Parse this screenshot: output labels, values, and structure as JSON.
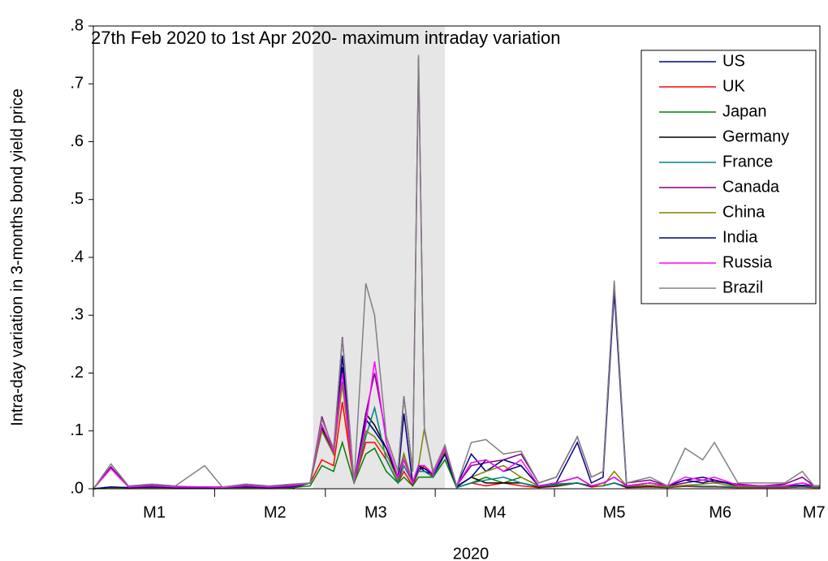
{
  "chart_data": {
    "type": "line",
    "title": "27th Feb 2020 to 1st Apr 2020- maximum intraday variation",
    "x_label": "2020",
    "y_label": "Intra-day variation in 3-months bond yield price",
    "shaded_x": [
      37.5,
      60
    ],
    "shade_color": "#e6e6e6",
    "x": [
      0,
      3,
      6,
      10,
      14,
      19,
      22,
      26,
      30,
      34,
      37,
      39,
      41,
      42.5,
      44.5,
      46.5,
      48,
      50,
      52,
      53,
      54.5,
      55.5,
      56.5,
      58,
      60,
      62,
      64.5,
      67,
      70,
      73,
      76,
      79,
      82.6,
      85,
      87,
      88.9,
      91,
      95,
      98,
      101,
      104,
      106,
      110,
      114,
      118,
      121,
      123,
      124
    ],
    "xlim": [
      0,
      124
    ],
    "xticks": [
      {
        "value": 10.4,
        "label": "M1"
      },
      {
        "value": 31,
        "label": "M2"
      },
      {
        "value": 48.2,
        "label": "M3"
      },
      {
        "value": 68.5,
        "label": "M4"
      },
      {
        "value": 88.9,
        "label": "M5"
      },
      {
        "value": 107,
        "label": "M6"
      },
      {
        "value": 123,
        "label": "M7"
      }
    ],
    "ylim": [
      0,
      0.8
    ],
    "yticks": [
      {
        "value": 0,
        "label": ".0"
      },
      {
        "value": 0.1,
        "label": ".1"
      },
      {
        "value": 0.2,
        "label": ".2"
      },
      {
        "value": 0.3,
        "label": ".3"
      },
      {
        "value": 0.4,
        "label": ".4"
      },
      {
        "value": 0.5,
        "label": ".5"
      },
      {
        "value": 0.6,
        "label": ".6"
      },
      {
        "value": 0.7,
        "label": ".7"
      },
      {
        "value": 0.8,
        "label": ".8"
      }
    ],
    "legend": "upper right",
    "series": [
      {
        "name": "US",
        "color": "#00008b",
        "values": [
          0,
          0.035,
          0.003,
          0.004,
          0.003,
          0.003,
          0.002,
          0.004,
          0.003,
          0.004,
          0.01,
          0.1,
          0.06,
          0.23,
          0.01,
          0.12,
          0.1,
          0.07,
          0.02,
          0.06,
          0.01,
          0.04,
          0.03,
          0.025,
          0.07,
          0.005,
          0.06,
          0.03,
          0.05,
          0.04,
          0.005,
          0.01,
          0.08,
          0.01,
          0.02,
          0.34,
          0.005,
          0.01,
          0.005,
          0.015,
          0.02,
          0.015,
          0.005,
          0.005,
          0.005,
          0.01,
          0.005,
          0.005
        ]
      },
      {
        "name": "UK",
        "color": "#ff0000",
        "values": [
          0,
          0.002,
          0.001,
          0.002,
          0.001,
          0.001,
          0.001,
          0.002,
          0.001,
          0.002,
          0.01,
          0.05,
          0.04,
          0.15,
          0.01,
          0.08,
          0.08,
          0.05,
          0.01,
          0.03,
          0.005,
          0.03,
          0.04,
          0.02,
          0.06,
          0.002,
          0.01,
          0.005,
          0.01,
          0.005,
          0.002,
          0.004,
          0.01,
          0.003,
          0.005,
          0.01,
          0.002,
          0.003,
          0.002,
          0.004,
          0.003,
          0.003,
          0.002,
          0.002,
          0.002,
          0.003,
          0.002,
          0.002
        ]
      },
      {
        "name": "Japan",
        "color": "#008000",
        "values": [
          0,
          0.003,
          0.002,
          0.002,
          0.002,
          0.002,
          0.002,
          0.002,
          0.002,
          0.002,
          0.005,
          0.04,
          0.03,
          0.08,
          0.01,
          0.06,
          0.07,
          0.03,
          0.01,
          0.02,
          0.005,
          0.02,
          0.02,
          0.02,
          0.05,
          0.002,
          0.01,
          0.02,
          0.01,
          0.02,
          0.005,
          0.008,
          0.01,
          0.005,
          0.005,
          0.01,
          0.004,
          0.005,
          0.003,
          0.005,
          0.004,
          0.004,
          0.003,
          0.003,
          0.003,
          0.004,
          0.003,
          0.003
        ]
      },
      {
        "name": "Germany",
        "color": "#000000",
        "values": [
          0,
          0.002,
          0.001,
          0.001,
          0.001,
          0.001,
          0.001,
          0.001,
          0.001,
          0.001,
          0.01,
          0.105,
          0.06,
          0.21,
          0.01,
          0.13,
          0.11,
          0.07,
          0.015,
          0.05,
          0.01,
          0.04,
          0.035,
          0.025,
          0.06,
          0.003,
          0.02,
          0.01,
          0.01,
          0.01,
          0.003,
          0.005,
          0.01,
          0.004,
          0.005,
          0.01,
          0.003,
          0.004,
          0.003,
          0.005,
          0.004,
          0.004,
          0.003,
          0.003,
          0.003,
          0.004,
          0.003,
          0.003
        ]
      },
      {
        "name": "France",
        "color": "#008080",
        "values": [
          0,
          0.003,
          0.002,
          0.002,
          0.002,
          0.002,
          0.002,
          0.002,
          0.002,
          0.002,
          0.01,
          0.1,
          0.06,
          0.185,
          0.01,
          0.09,
          0.14,
          0.05,
          0.01,
          0.04,
          0.01,
          0.03,
          0.03,
          0.02,
          0.06,
          0.002,
          0.01,
          0.015,
          0.02,
          0.01,
          0.004,
          0.006,
          0.01,
          0.005,
          0.005,
          0.01,
          0.004,
          0.005,
          0.003,
          0.005,
          0.004,
          0.004,
          0.003,
          0.003,
          0.003,
          0.004,
          0.003,
          0.003
        ]
      },
      {
        "name": "Canada",
        "color": "#800080",
        "values": [
          0,
          0.038,
          0.004,
          0.006,
          0.004,
          0.003,
          0.003,
          0.006,
          0.004,
          0.006,
          0.01,
          0.125,
          0.065,
          0.262,
          0.01,
          0.13,
          0.2,
          0.09,
          0.03,
          0.16,
          0.03,
          0.745,
          0.1,
          0.03,
          0.075,
          0.005,
          0.04,
          0.045,
          0.05,
          0.06,
          0.01,
          0.02,
          0.09,
          0.02,
          0.03,
          0.355,
          0.01,
          0.015,
          0.005,
          0.01,
          0.015,
          0.012,
          0.008,
          0.005,
          0.008,
          0.02,
          0.005,
          0.005
        ]
      },
      {
        "name": "China",
        "color": "#808000",
        "values": [
          0,
          0.002,
          0.001,
          0.002,
          0.001,
          0.001,
          0.001,
          0.002,
          0.001,
          0.002,
          0.01,
          0.1,
          0.06,
          0.18,
          0.01,
          0.1,
          0.09,
          0.06,
          0.015,
          0.06,
          0.01,
          0.04,
          0.105,
          0.025,
          0.065,
          0.004,
          0.02,
          0.03,
          0.04,
          0.02,
          0.005,
          0.01,
          0.02,
          0.005,
          0.005,
          0.03,
          0.005,
          0.006,
          0.004,
          0.006,
          0.008,
          0.01,
          0.004,
          0.004,
          0.004,
          0.006,
          0.004,
          0.004
        ]
      },
      {
        "name": "India",
        "color": "#000080",
        "values": [
          0,
          0.003,
          0.002,
          0.003,
          0.002,
          0.002,
          0.002,
          0.003,
          0.002,
          0.003,
          0.01,
          0.11,
          0.065,
          0.21,
          0.01,
          0.12,
          0.1,
          0.07,
          0.02,
          0.13,
          0.01,
          0.035,
          0.035,
          0.025,
          0.06,
          0.004,
          0.02,
          0.05,
          0.03,
          0.04,
          0.005,
          0.01,
          0.02,
          0.005,
          0.01,
          0.02,
          0.005,
          0.01,
          0.005,
          0.015,
          0.01,
          0.015,
          0.006,
          0.005,
          0.005,
          0.006,
          0.005,
          0.005
        ]
      },
      {
        "name": "Russia",
        "color": "#ff00ff",
        "values": [
          0,
          0.035,
          0.003,
          0.005,
          0.003,
          0.003,
          0.002,
          0.005,
          0.003,
          0.005,
          0.01,
          0.11,
          0.065,
          0.2,
          0.01,
          0.11,
          0.22,
          0.08,
          0.02,
          0.05,
          0.01,
          0.04,
          0.04,
          0.025,
          0.07,
          0.005,
          0.045,
          0.05,
          0.03,
          0.05,
          0.005,
          0.01,
          0.02,
          0.005,
          0.01,
          0.02,
          0.005,
          0.01,
          0.005,
          0.02,
          0.015,
          0.02,
          0.006,
          0.005,
          0.005,
          0.01,
          0.005,
          0.005
        ]
      },
      {
        "name": "Brazil",
        "color": "#808080",
        "values": [
          0,
          0.043,
          0.005,
          0.008,
          0.005,
          0.04,
          0.003,
          0.008,
          0.005,
          0.008,
          0.01,
          0.12,
          0.07,
          0.26,
          0.01,
          0.355,
          0.3,
          0.09,
          0.03,
          0.16,
          0.03,
          0.75,
          0.1,
          0.03,
          0.075,
          0.005,
          0.08,
          0.085,
          0.06,
          0.065,
          0.01,
          0.02,
          0.09,
          0.02,
          0.03,
          0.36,
          0.01,
          0.02,
          0.005,
          0.07,
          0.05,
          0.08,
          0.01,
          0.01,
          0.01,
          0.03,
          0.005,
          0.005
        ]
      }
    ]
  }
}
